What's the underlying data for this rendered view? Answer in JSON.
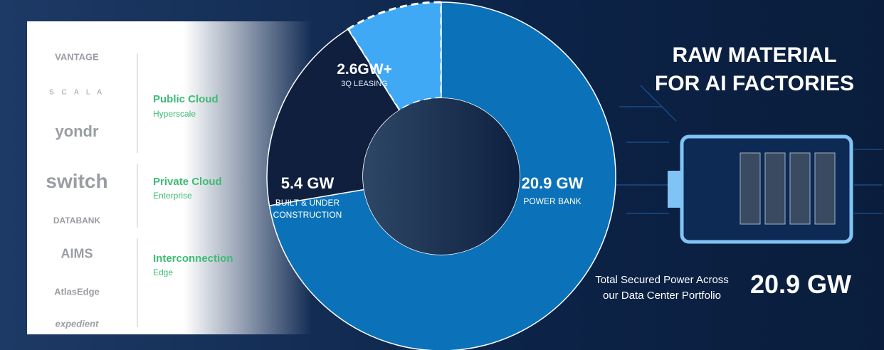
{
  "logos": [
    "VANTAGE",
    "S C A L A",
    "yondr",
    "switch",
    "DATABANK",
    "AIMS",
    "AtlasEdge",
    "expedient"
  ],
  "segments": [
    {
      "title": "Public Cloud",
      "subtitle": "Hyperscale"
    },
    {
      "title": "Private Cloud",
      "subtitle": "Enterprise"
    },
    {
      "title": "Interconnection",
      "subtitle": "Edge"
    }
  ],
  "headline": {
    "title": "RAW MATERIAL FOR AI FACTORIES",
    "total_caption": "Total Secured Power Across our Data Center Portfolio",
    "total_value": "20.9 GW"
  },
  "chart_data": {
    "type": "donut",
    "categories": [
      "POWER BANK",
      "BUILT & UNDER CONSTRUCTION",
      "3Q LEASING"
    ],
    "values": [
      20.9,
      5.4,
      2.6
    ],
    "value_labels": [
      "20.9 GW",
      "5.4 GW",
      "2.6GW+"
    ],
    "colors": [
      "#0b72b9",
      "#0f1f3d",
      "#3fa9f5"
    ]
  }
}
